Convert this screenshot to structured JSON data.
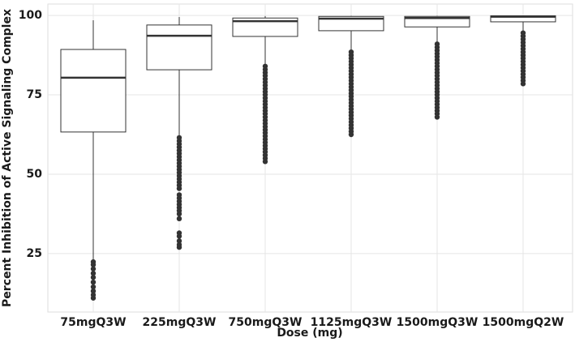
{
  "chart_data": {
    "type": "box",
    "x_label": "Dose (mg)",
    "y_label": "Percent Inhibition of Active Signaling Complex",
    "categories": [
      "75mgQ3W",
      "225mgQ3W",
      "750mgQ3W",
      "1125mgQ3W",
      "1500mgQ3W",
      "1500mgQ2W"
    ],
    "boxes": [
      {
        "whisker_low": 23.2,
        "q1": 63.3,
        "median": 80.4,
        "q3": 89.3,
        "whisker_high": 98.5,
        "outliers": [
          22.4,
          21.5,
          20.2,
          18.8,
          17.5,
          16,
          14.5,
          13.2,
          12,
          11
        ]
      },
      {
        "whisker_low": 62,
        "q1": 82.9,
        "median": 93.6,
        "q3": 97,
        "whisker_high": 99.5,
        "outliers": [
          61.5,
          60.5,
          59.5,
          58.5,
          57.5,
          56.5,
          55.5,
          54.5,
          53.5,
          52.5,
          51.5,
          50.5,
          49.5,
          48.5,
          47.5,
          46.5,
          45.5,
          43.5,
          42.5,
          41.5,
          40.5,
          39.5,
          38.5,
          37.5,
          36,
          31.5,
          30.5,
          29,
          27.8,
          27
        ]
      },
      {
        "whisker_low": 84.4,
        "q1": 93.4,
        "median": 98.2,
        "q3": 99.2,
        "whisker_high": 99.8,
        "outliers": [
          84,
          83,
          82,
          81,
          80,
          79,
          78,
          77,
          76,
          75,
          74,
          73,
          72,
          71,
          70,
          69,
          68,
          67,
          66,
          65,
          64,
          63,
          62,
          61,
          60,
          59,
          58,
          57,
          56,
          55,
          54
        ]
      },
      {
        "whisker_low": 89,
        "q1": 95.2,
        "median": 99,
        "q3": 99.7,
        "whisker_high": 99.9,
        "outliers": [
          88.5,
          87.5,
          86.5,
          85.5,
          84.5,
          83.5,
          82.5,
          81.5,
          80.5,
          79.5,
          78.5,
          77.5,
          76.5,
          75.5,
          74.5,
          73.5,
          72.5,
          71.5,
          70.5,
          69.5,
          68.5,
          67.5,
          66.5,
          65.5,
          64.5,
          63.5,
          62.5
        ]
      },
      {
        "whisker_low": 91.6,
        "q1": 96.4,
        "median": 99.2,
        "q3": 99.7,
        "whisker_high": 99.9,
        "outliers": [
          91,
          90,
          89,
          88,
          87,
          86,
          85,
          84,
          83,
          82,
          81,
          80,
          79,
          78,
          77,
          76,
          75,
          74,
          73,
          72,
          71,
          70,
          69,
          68
        ]
      },
      {
        "whisker_low": 95.2,
        "q1": 98,
        "median": 99.6,
        "q3": 99.9,
        "whisker_high": 100,
        "outliers": [
          94.5,
          93.5,
          92.5,
          91.5,
          90.5,
          89.5,
          88.5,
          87.5,
          86.5,
          85.5,
          84.5,
          83.5,
          82.5,
          81.5,
          80.5,
          79.5,
          78.5
        ]
      }
    ],
    "box_fill": "#ffffff",
    "line_color": "#333333",
    "outlier_color": "#333333",
    "ylim": [
      6.6,
      103.6
    ],
    "yticks": [
      25,
      50,
      75,
      100
    ],
    "grid": true
  }
}
